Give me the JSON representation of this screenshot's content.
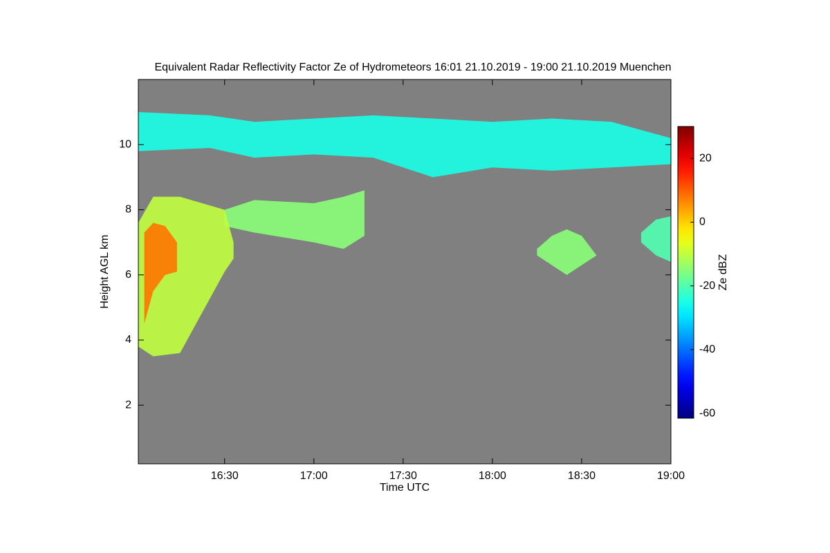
{
  "chart_data": {
    "type": "heatmap",
    "title": "Equivalent Radar Reflectivity Factor Ze of Hydrometeors   16:01 21.10.2019 - 19:00 21.10.2019 Muenchen",
    "x_label": "Time UTC",
    "y_label": "Height AGL km",
    "colorbar_label": "Ze dBZ",
    "xlim": [
      961,
      1140
    ],
    "xticks": [
      {
        "value": 990,
        "label": "16:30"
      },
      {
        "value": 1020,
        "label": "17:00"
      },
      {
        "value": 1050,
        "label": "17:30"
      },
      {
        "value": 1080,
        "label": "18:00"
      },
      {
        "value": 1110,
        "label": "18:30"
      },
      {
        "value": 1140,
        "label": "19:00"
      }
    ],
    "ylim": [
      0.2,
      12
    ],
    "yticks": [
      2,
      4,
      6,
      8,
      10
    ],
    "clim": [
      -61.5,
      30
    ],
    "cticks": [
      -60,
      -40,
      -20,
      0,
      20
    ],
    "background": "#808080",
    "layers": [
      {
        "x": [
          961,
          985,
          1000,
          1020,
          1040,
          1060,
          1080,
          1100,
          1120,
          1140
        ],
        "top": [
          11,
          10.9,
          10.7,
          10.8,
          10.9,
          10.8,
          10.7,
          10.8,
          10.7,
          10.2
        ],
        "bottom": [
          9.8,
          9.9,
          9.6,
          9.7,
          9.6,
          9.0,
          9.3,
          9.2,
          9.3,
          9.4
        ],
        "ze": -25
      },
      {
        "x": [
          990,
          1000,
          1020,
          1030,
          1037
        ],
        "top": [
          8,
          8.3,
          8.2,
          8.4,
          8.6
        ],
        "bottom": [
          7.5,
          7.3,
          7.0,
          6.8,
          7.2
        ],
        "ze": -15
      },
      {
        "x": [
          961,
          966,
          975,
          990,
          993
        ],
        "top": [
          7.6,
          8.4,
          8.4,
          8.0,
          7.0
        ],
        "bottom": [
          3.8,
          3.5,
          3.6,
          6.1,
          6.5
        ],
        "ze": -10
      },
      {
        "x": [
          963,
          966,
          970,
          974
        ],
        "top": [
          7.3,
          7.6,
          7.5,
          7.0
        ],
        "bottom": [
          4.5,
          5.5,
          6.0,
          6.1
        ],
        "ze": 8
      },
      {
        "x": [
          1095,
          1100,
          1105,
          1110,
          1115
        ],
        "top": [
          6.8,
          7.2,
          7.4,
          7.2,
          6.6
        ],
        "bottom": [
          6.6,
          6.3,
          6.0,
          6.3,
          6.6
        ],
        "ze": -15
      },
      {
        "x": [
          1130,
          1135,
          1140
        ],
        "top": [
          7.3,
          7.7,
          7.8
        ],
        "bottom": [
          7.0,
          6.6,
          6.4
        ],
        "ze": -20
      }
    ]
  }
}
